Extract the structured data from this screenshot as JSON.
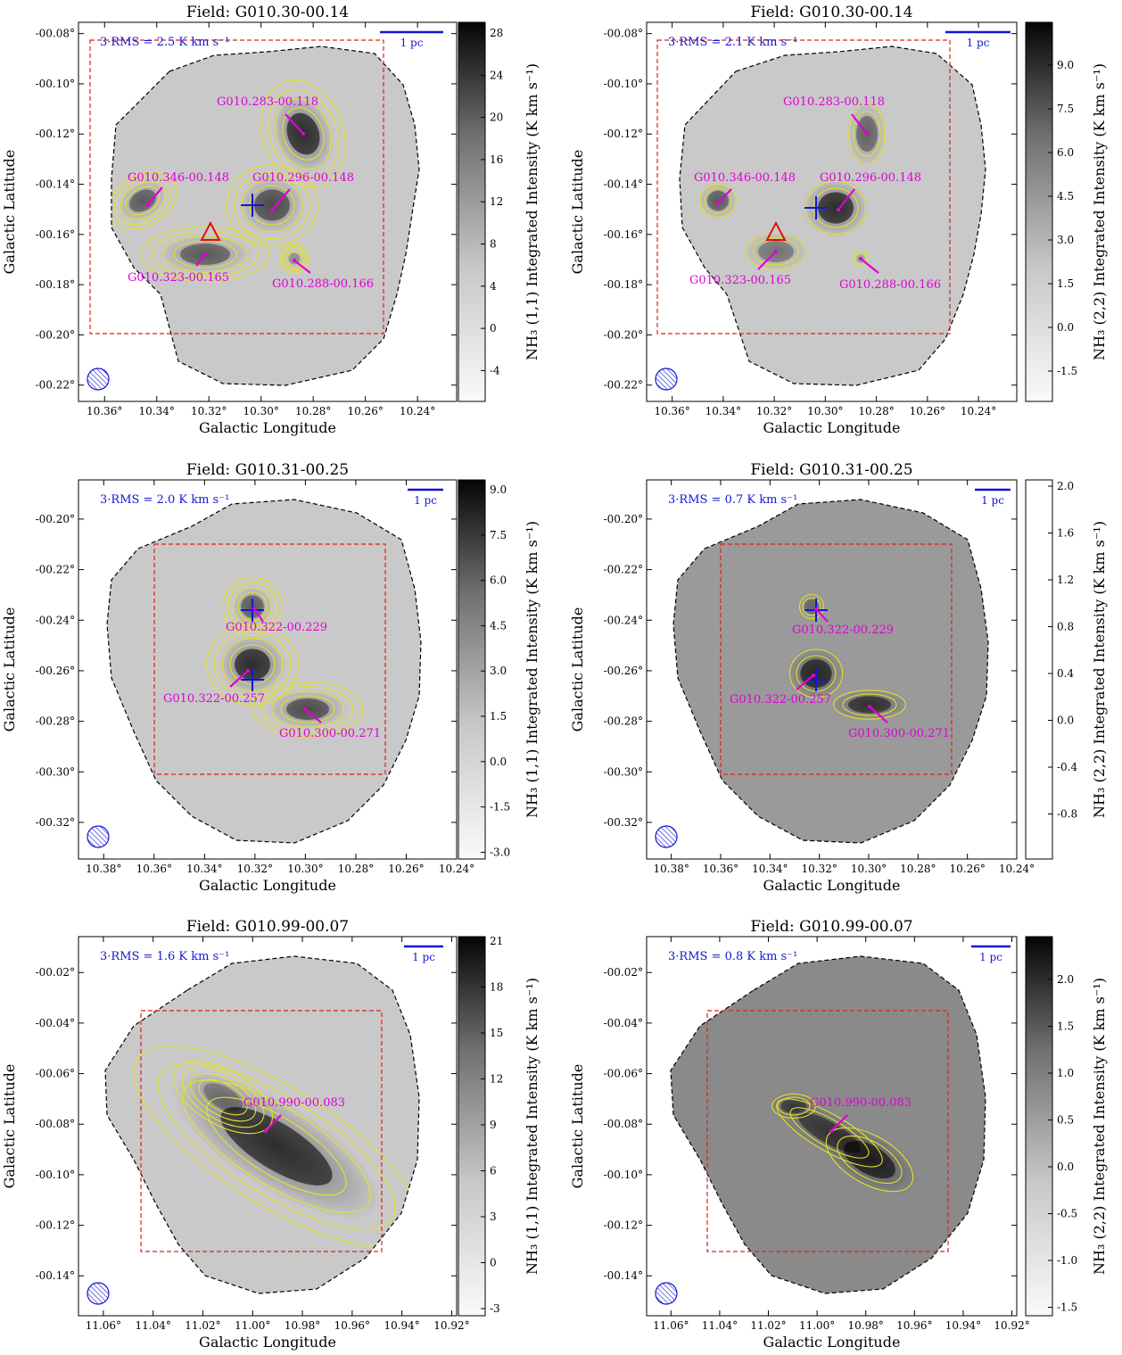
{
  "common": {
    "xlabel": "Galactic Longitude",
    "ylabel": "Galactic Latitude",
    "scalebar_label": "1 pc",
    "colors": {
      "contour": "#e5e22a",
      "source": "#e000d8",
      "marker": "#1515d6",
      "triangle": "#e01010",
      "box": "#e02020",
      "outline": "#000000"
    }
  },
  "chart_data": [
    {
      "type": "heatmap",
      "title": "Field: G010.30-00.14",
      "rms_label": "3·RMS = 2.5 K km s⁻¹",
      "colorbar_label": "NH₃ (1,1) Integrated Intensity (K km s⁻¹)",
      "colorbar_ticks": [
        "28",
        "24",
        "20",
        "16",
        "12",
        "8",
        "4",
        "0",
        "-4"
      ],
      "x_ticks": [
        "10.36°",
        "10.34°",
        "10.32°",
        "10.30°",
        "10.28°",
        "10.26°",
        "10.24°"
      ],
      "y_ticks": [
        "-00.08°",
        "-00.10°",
        "-00.12°",
        "-00.14°",
        "-00.16°",
        "-00.18°",
        "-00.20°",
        "-00.22°"
      ],
      "sources": [
        {
          "name": "G010.283-00.118",
          "l": 10.283,
          "b": -0.118
        },
        {
          "name": "G010.346-00.148",
          "l": 10.346,
          "b": -0.148
        },
        {
          "name": "G010.296-00.148",
          "l": 10.296,
          "b": -0.148
        },
        {
          "name": "G010.323-00.165",
          "l": 10.323,
          "b": -0.165
        },
        {
          "name": "G010.288-00.166",
          "l": 10.288,
          "b": -0.166
        }
      ]
    },
    {
      "type": "heatmap",
      "title": "Field: G010.30-00.14",
      "rms_label": "3·RMS = 2.1 K km s⁻¹",
      "colorbar_label": "NH₃ (2,2) Integrated Intensity (K km s⁻¹)",
      "colorbar_ticks": [
        "9.0",
        "7.5",
        "6.0",
        "4.5",
        "3.0",
        "1.5",
        "0.0",
        "-1.5"
      ],
      "x_ticks": [
        "10.36°",
        "10.34°",
        "10.32°",
        "10.30°",
        "10.28°",
        "10.26°",
        "10.24°"
      ],
      "y_ticks": [
        "-00.08°",
        "-00.10°",
        "-00.12°",
        "-00.14°",
        "-00.16°",
        "-00.18°",
        "-00.20°",
        "-00.22°"
      ],
      "sources": [
        {
          "name": "G010.283-00.118",
          "l": 10.283,
          "b": -0.118
        },
        {
          "name": "G010.346-00.148",
          "l": 10.346,
          "b": -0.148
        },
        {
          "name": "G010.296-00.148",
          "l": 10.296,
          "b": -0.148
        },
        {
          "name": "G010.323-00.165",
          "l": 10.323,
          "b": -0.165
        },
        {
          "name": "G010.288-00.166",
          "l": 10.288,
          "b": -0.166
        }
      ]
    },
    {
      "type": "heatmap",
      "title": "Field: G010.31-00.25",
      "rms_label": "3·RMS = 2.0 K km s⁻¹",
      "colorbar_label": "NH₃ (1,1) Integrated Intensity (K km s⁻¹)",
      "colorbar_ticks": [
        "9.0",
        "7.5",
        "6.0",
        "4.5",
        "3.0",
        "1.5",
        "0.0",
        "-1.5",
        "-3.0"
      ],
      "x_ticks": [
        "10.38°",
        "10.36°",
        "10.34°",
        "10.32°",
        "10.30°",
        "10.28°",
        "10.26°",
        "10.24°"
      ],
      "y_ticks": [
        "-00.20°",
        "-00.22°",
        "-00.24°",
        "-00.26°",
        "-00.28°",
        "-00.30°",
        "-00.32°"
      ],
      "sources": [
        {
          "name": "G010.322-00.229",
          "l": 10.322,
          "b": -0.229
        },
        {
          "name": "G010.322-00.257",
          "l": 10.322,
          "b": -0.257
        },
        {
          "name": "G010.300-00.271",
          "l": 10.3,
          "b": -0.271
        }
      ]
    },
    {
      "type": "heatmap",
      "title": "Field: G010.31-00.25",
      "rms_label": "3·RMS = 0.7 K km s⁻¹",
      "colorbar_label": "NH₃ (2,2) Integrated Intensity (K km s⁻¹)",
      "colorbar_ticks": [
        "2.0",
        "1.6",
        "1.2",
        "0.8",
        "0.4",
        "0.0",
        "-0.4",
        "-0.8"
      ],
      "x_ticks": [
        "10.38°",
        "10.36°",
        "10.34°",
        "10.32°",
        "10.30°",
        "10.28°",
        "10.26°",
        "10.24°"
      ],
      "y_ticks": [
        "-00.20°",
        "-00.22°",
        "-00.24°",
        "-00.26°",
        "-00.28°",
        "-00.30°",
        "-00.32°"
      ],
      "sources": [
        {
          "name": "G010.322-00.229",
          "l": 10.322,
          "b": -0.229
        },
        {
          "name": "G010.322-00.257",
          "l": 10.322,
          "b": -0.257
        },
        {
          "name": "G010.300-00.271",
          "l": 10.3,
          "b": -0.271
        }
      ]
    },
    {
      "type": "heatmap",
      "title": "Field: G010.99-00.07",
      "rms_label": "3·RMS = 1.6 K km s⁻¹",
      "colorbar_label": "NH₃ (1,1) Integrated Intensity (K km s⁻¹)",
      "colorbar_ticks": [
        "21",
        "18",
        "15",
        "12",
        "9",
        "6",
        "3",
        "0",
        "-3"
      ],
      "x_ticks": [
        "11.06°",
        "11.04°",
        "11.02°",
        "11.00°",
        "10.98°",
        "10.96°",
        "10.94°",
        "10.92°"
      ],
      "y_ticks": [
        "-00.02°",
        "-00.04°",
        "-00.06°",
        "-00.08°",
        "-00.10°",
        "-00.12°",
        "-00.14°"
      ],
      "sources": [
        {
          "name": "G010.990-00.083",
          "l": 10.99,
          "b": -0.083
        }
      ]
    },
    {
      "type": "heatmap",
      "title": "Field: G010.99-00.07",
      "rms_label": "3·RMS = 0.8 K km s⁻¹",
      "colorbar_label": "NH₃ (2,2) Integrated Intensity (K km s⁻¹)",
      "colorbar_ticks": [
        "2.0",
        "1.5",
        "1.0",
        "0.5",
        "0.0",
        "-0.5",
        "-1.0",
        "-1.5"
      ],
      "x_ticks": [
        "11.06°",
        "11.04°",
        "11.02°",
        "11.00°",
        "10.98°",
        "10.96°",
        "10.94°",
        "10.92°"
      ],
      "y_ticks": [
        "-00.02°",
        "-00.04°",
        "-00.06°",
        "-00.08°",
        "-00.10°",
        "-00.12°",
        "-00.14°"
      ],
      "sources": [
        {
          "name": "G010.990-00.083",
          "l": 10.99,
          "b": -0.083
        }
      ]
    }
  ]
}
